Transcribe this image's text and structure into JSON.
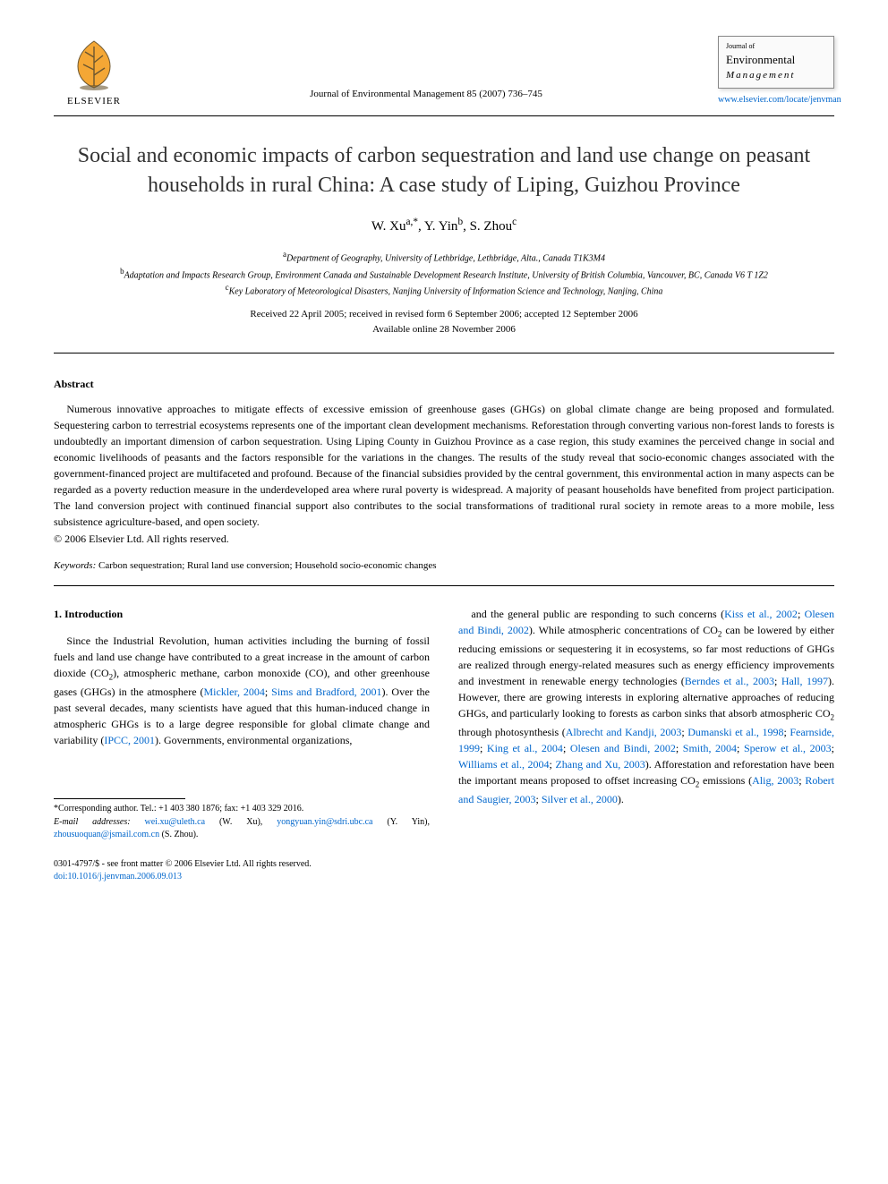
{
  "publisher": {
    "name": "ELSEVIER",
    "logo_fill": "#ff8a00",
    "logo_stroke": "#5a4a2a"
  },
  "journal": {
    "citation": "Journal of Environmental Management 85 (2007) 736–745",
    "cover_top": "Journal of",
    "cover_title": "Environmental",
    "cover_sub": "Management",
    "link": "www.elsevier.com/locate/jenvman"
  },
  "article": {
    "title": "Social and economic impacts of carbon sequestration and land use change on peasant households in rural China: A case study of Liping, Guizhou Province",
    "authors_html": "W. Xu<sup>a,*</sup>, Y. Yin<sup>b</sup>, S. Zhou<sup>c</sup>",
    "affiliations": [
      "<sup>a</sup>Department of Geography, University of Lethbridge, Lethbridge, Alta., Canada T1K3M4",
      "<sup>b</sup>Adaptation and Impacts Research Group, Environment Canada and Sustainable Development Research Institute, University of British Columbia, Vancouver, BC, Canada V6 T 1Z2",
      "<sup>c</sup>Key Laboratory of Meteorological Disasters, Nanjing University of Information Science and Technology, Nanjing, China"
    ],
    "dates_line1": "Received 22 April 2005; received in revised form 6 September 2006; accepted 12 September 2006",
    "dates_line2": "Available online 28 November 2006"
  },
  "abstract": {
    "heading": "Abstract",
    "body": "Numerous innovative approaches to mitigate effects of excessive emission of greenhouse gases (GHGs) on global climate change are being proposed and formulated. Sequestering carbon to terrestrial ecosystems represents one of the important clean development mechanisms. Reforestation through converting various non-forest lands to forests is undoubtedly an important dimension of carbon sequestration. Using Liping County in Guizhou Province as a case region, this study examines the perceived change in social and economic livelihoods of peasants and the factors responsible for the variations in the changes. The results of the study reveal that socio-economic changes associated with the government-financed project are multifaceted and profound. Because of the financial subsidies provided by the central government, this environmental action in many aspects can be regarded as a poverty reduction measure in the underdeveloped area where rural poverty is widespread. A majority of peasant households have benefited from project participation. The land conversion project with continued financial support also contributes to the social transformations of traditional rural society in remote areas to a more mobile, less subsistence agriculture-based, and open society.",
    "copyright": "© 2006 Elsevier Ltd. All rights reserved."
  },
  "keywords": {
    "label": "Keywords:",
    "text": " Carbon sequestration; Rural land use conversion; Household socio-economic changes"
  },
  "intro": {
    "heading": "1. Introduction",
    "col1_html": "Since the Industrial Revolution, human activities including the burning of fossil fuels and land use change have contributed to a great increase in the amount of carbon dioxide (CO<sub>2</sub>), atmospheric methane, carbon monoxide (CO), and other greenhouse gases (GHGs) in the atmosphere (<span class=\"cite\">Mickler, 2004</span>; <span class=\"cite\">Sims and Bradford, 2001</span>). Over the past several decades, many scientists have agued that this human-induced change in atmospheric GHGs is to a large degree responsible for global climate change and variability (<span class=\"cite\">IPCC, 2001</span>). Governments, environmental organizations,",
    "col2_html": "and the general public are responding to such concerns (<span class=\"cite\">Kiss et al., 2002</span>; <span class=\"cite\">Olesen and Bindi, 2002</span>). While atmospheric concentrations of CO<sub>2</sub> can be lowered by either reducing emissions or sequestering it in ecosystems, so far most reductions of GHGs are realized through energy-related measures such as energy efficiency improvements and investment in renewable energy technologies (<span class=\"cite\">Berndes et al., 2003</span>; <span class=\"cite\">Hall, 1997</span>). However, there are growing interests in exploring alternative approaches of reducing GHGs, and particularly looking to forests as carbon sinks that absorb atmospheric CO<sub>2</sub> through photosynthesis (<span class=\"cite\">Albrecht and Kandji, 2003</span>; <span class=\"cite\">Dumanski et al., 1998</span>; <span class=\"cite\">Fearnside, 1999</span>; <span class=\"cite\">King et al., 2004</span>; <span class=\"cite\">Olesen and Bindi, 2002</span>; <span class=\"cite\">Smith, 2004</span>; <span class=\"cite\">Sperow et al., 2003</span>; <span class=\"cite\">Williams et al., 2004</span>; <span class=\"cite\">Zhang and Xu, 2003</span>). Afforestation and reforestation have been the important means proposed to offset increasing CO<sub>2</sub> emissions (<span class=\"cite\">Alig, 2003</span>; <span class=\"cite\">Robert and Saugier, 2003</span>; <span class=\"cite\">Silver et al., 2000</span>)."
  },
  "footnotes": {
    "corr": "*Corresponding author. Tel.: +1 403 380 1876; fax: +1 403 329 2016.",
    "emails_label": "E-mail addresses:",
    "emails_html": " <span class=\"email\">wei.xu@uleth.ca</span> (W. Xu), <span class=\"email\">yongyuan.yin@sdri.ubc.ca</span> (Y. Yin), <span class=\"email\">zhousuoquan@jsmail.com.cn</span> (S. Zhou)."
  },
  "footer": {
    "left_line1": "0301-4797/$ - see front matter © 2006 Elsevier Ltd. All rights reserved.",
    "left_line2": "doi:10.1016/j.jenvman.2006.09.013"
  },
  "colors": {
    "link": "#0066cc",
    "text": "#000000",
    "title": "#333333",
    "background": "#ffffff"
  },
  "typography": {
    "body_pt": 12,
    "title_pt": 24,
    "authors_pt": 15,
    "affil_pt": 10,
    "abstract_heading_pt": 12,
    "keywords_pt": 11,
    "footnote_pt": 10
  }
}
